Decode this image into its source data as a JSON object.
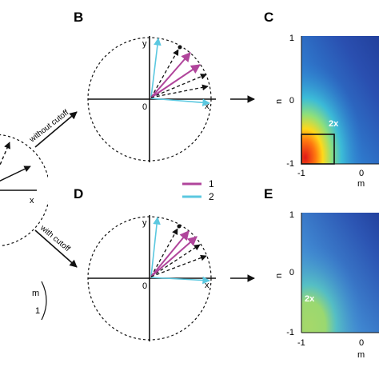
{
  "panels": {
    "b": "B",
    "c": "C",
    "d": "D",
    "e": "E"
  },
  "circle_labels": {
    "x": "x",
    "y": "y",
    "origin": "0"
  },
  "arrow_labels": {
    "upper": "without cutoff",
    "lower": "with cutoff"
  },
  "legend": {
    "items": [
      {
        "label": "1",
        "color": "#b0459b"
      },
      {
        "label": "2",
        "color": "#5bc8e0"
      }
    ]
  },
  "heatmap_axes": {
    "xlabel": "m",
    "ylabel": "n",
    "xticks": [
      "-1",
      "0"
    ],
    "yticks": [
      "1",
      "0",
      "-1"
    ]
  },
  "heatmap_marker": "2x",
  "partial_matrix": {
    "top": "m",
    "bottom": "1"
  },
  "colors": {
    "series1": "#b0459b",
    "series2": "#5bc8e0",
    "dashed": "#111111",
    "heat_low": "#2a4fb0",
    "heat_high": "#d81e1e"
  }
}
